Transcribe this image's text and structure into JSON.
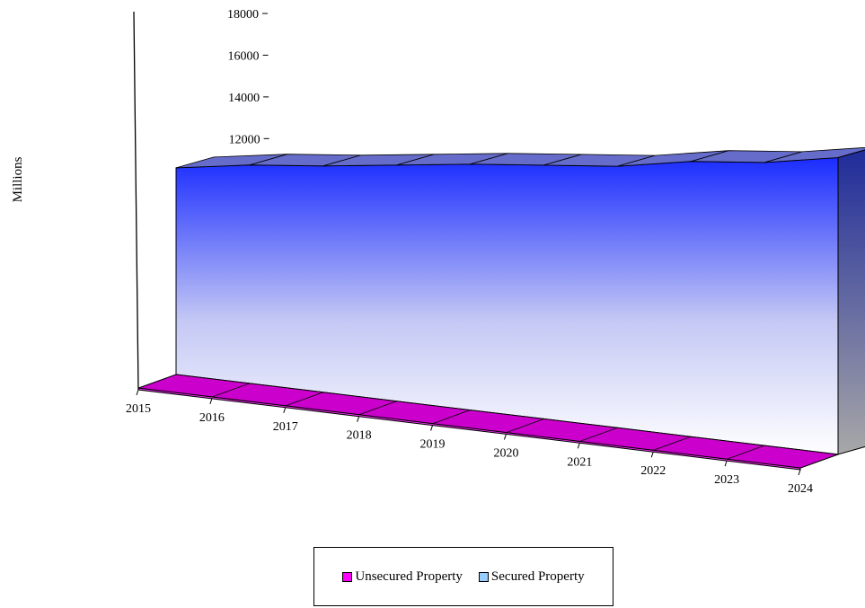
{
  "chart_data": {
    "type": "area",
    "ylabel": "Millions",
    "ylim": [
      0,
      18000
    ],
    "yticks": [
      "0",
      "2000",
      "4000",
      "6000",
      "8000",
      "10000",
      "12000",
      "14000",
      "16000",
      "18000"
    ],
    "categories": [
      "2015",
      "2016",
      "2017",
      "2018",
      "2019",
      "2020",
      "2021",
      "2022",
      "2023",
      "2024"
    ],
    "series": [
      {
        "name": "Unsecured Property",
        "color": "#ff00ff",
        "values": [
          400,
          400,
          400,
          400,
          400,
          400,
          400,
          400,
          400,
          400
        ]
      },
      {
        "name": "Secured Property",
        "color": "#99ccff",
        "values": [
          10300,
          10900,
          11300,
          11800,
          12300,
          12700,
          13100,
          13800,
          14200,
          14900
        ]
      }
    ],
    "grid": false,
    "legend": "bottom"
  },
  "legend": {
    "unsecured_label": "Unsecured Property",
    "secured_label": "Secured Property"
  }
}
